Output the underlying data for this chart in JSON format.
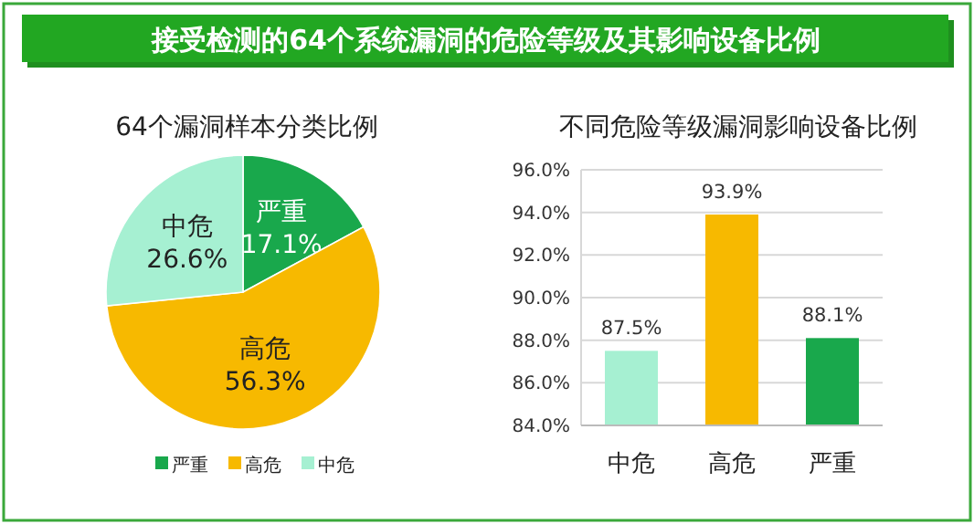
{
  "chart_data": [
    {
      "type": "pie",
      "title": "接受检测的64个系统漏洞的危险等级及其影响设备比例",
      "subtitle": "64个漏洞样本分类比例",
      "categories": [
        "严重",
        "高危",
        "中危"
      ],
      "values": [
        17.1,
        56.3,
        26.6
      ],
      "colors": [
        "#19a84c",
        "#f7b900",
        "#a6f0d2"
      ],
      "value_labels": [
        "17.1%",
        "56.3%",
        "26.6%"
      ],
      "legend": "bottom"
    },
    {
      "type": "bar",
      "title": "不同危险等级漏洞影响设备比例",
      "categories": [
        "中危",
        "高危",
        "严重"
      ],
      "values": [
        87.5,
        93.9,
        88.1
      ],
      "colors": [
        "#a6f0d2",
        "#f7b900",
        "#19a84c"
      ],
      "value_labels": [
        "87.5%",
        "93.9%",
        "88.1%"
      ],
      "ylim": [
        84,
        96
      ],
      "yticks": [
        {
          "value": 84,
          "label": "84.0%"
        },
        {
          "value": 86,
          "label": "86.0%"
        },
        {
          "value": 88,
          "label": "88.0%"
        },
        {
          "value": 90,
          "label": "90.0%"
        },
        {
          "value": 92,
          "label": "92.0%"
        },
        {
          "value": 94,
          "label": "94.0%"
        },
        {
          "value": 96,
          "label": "96.0%"
        }
      ],
      "grid": "y"
    }
  ]
}
